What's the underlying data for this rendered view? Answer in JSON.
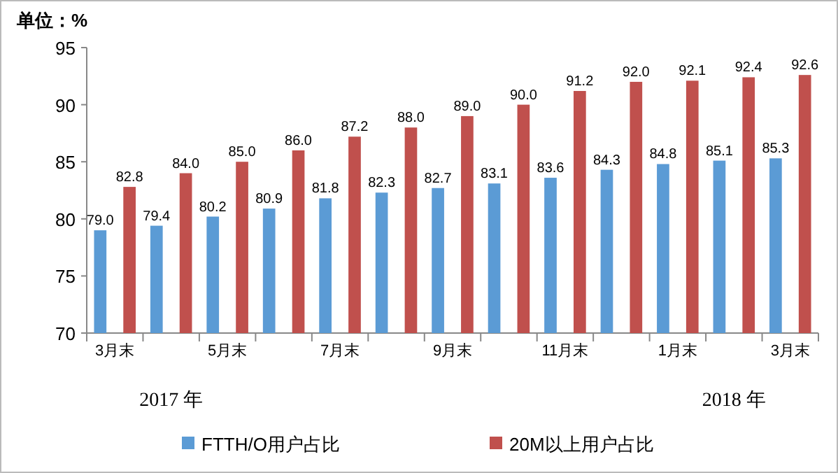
{
  "chart_data": {
    "type": "bar",
    "ylabel": "单位：%",
    "categories": [
      "3月末",
      null,
      "5月末",
      null,
      "7月末",
      null,
      "9月末",
      null,
      "11月末",
      null,
      "1月末",
      null,
      "3月末"
    ],
    "series": [
      {
        "name": "FTTH/O用户占比",
        "color": "#5b9bd5",
        "values": [
          79.0,
          79.4,
          80.2,
          80.9,
          81.8,
          82.3,
          82.7,
          83.1,
          83.6,
          84.3,
          84.8,
          85.1,
          85.3
        ],
        "value_labels": [
          "79.0",
          "79.4",
          "80.2",
          "80.9",
          "81.8",
          "82.3",
          "82.7",
          "83.1",
          "83.6",
          "84.3",
          "84.8",
          "85.1",
          "85.3"
        ]
      },
      {
        "name": "20M以上用户占比",
        "color": "#c0504d",
        "values": [
          82.8,
          84.0,
          85.0,
          86.0,
          87.2,
          88.0,
          89.0,
          90.0,
          91.2,
          92.0,
          92.1,
          92.4,
          92.6
        ],
        "value_labels": [
          "82.8",
          "84.0",
          "85.0",
          "86.0",
          "87.2",
          "88.0",
          "89.0",
          "90.0",
          "91.2",
          "92.0",
          "92.1",
          "92.4",
          "92.6"
        ]
      }
    ],
    "ylim": [
      70,
      95
    ],
    "yticks": [
      70,
      75,
      80,
      85,
      90,
      95
    ],
    "legend": "bottom",
    "annotations": [
      "2017 年",
      "2018 年"
    ]
  }
}
